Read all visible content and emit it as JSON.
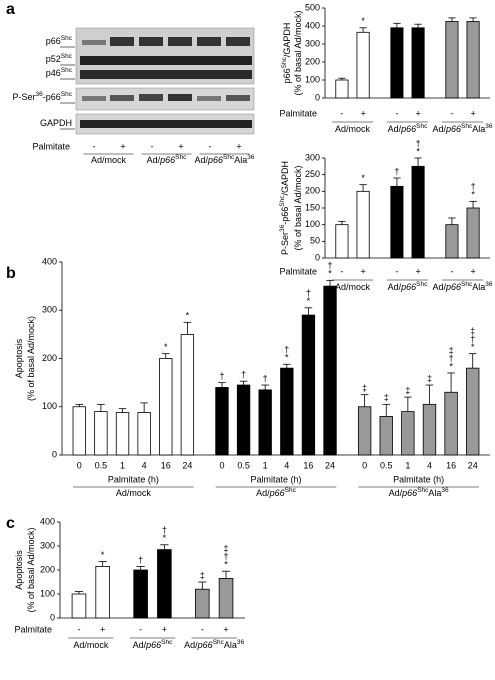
{
  "panel_labels": [
    "a",
    "b",
    "c"
  ],
  "blot": {
    "labels": [
      [
        {
          "text": "p66"
        },
        {
          "text": "Shc",
          "style": "sup"
        }
      ],
      [
        {
          "text": "p52"
        },
        {
          "text": "Shc",
          "style": "sup"
        }
      ],
      [
        {
          "text": "p46"
        },
        {
          "text": "Shc",
          "style": "sup"
        }
      ],
      [
        {
          "text": "P-Ser"
        },
        {
          "text": "36",
          "style": "sup"
        },
        {
          "text": "-p66"
        },
        {
          "text": "Shc",
          "style": "sup"
        }
      ],
      [
        {
          "text": "GAPDH"
        }
      ]
    ],
    "row_label": "Palmitate",
    "categories": [
      "-",
      "+",
      "-",
      "+",
      "-",
      "+"
    ],
    "groups": [
      [
        {
          "text": "Ad/mock"
        }
      ],
      [
        {
          "text": "Ad/"
        },
        {
          "text": "p66",
          "style": "it"
        },
        {
          "text": "Shc",
          "style": "sup"
        }
      ],
      [
        {
          "text": "Ad/"
        },
        {
          "text": "p66",
          "style": "it"
        },
        {
          "text": "Shc",
          "style": "sup"
        },
        {
          "text": "Ala"
        },
        {
          "text": "36",
          "style": "sup"
        }
      ]
    ]
  },
  "chart_data": [
    {
      "type": "bar",
      "ylabel": [
        [
          {
            "text": "p66"
          },
          {
            "text": "Shc",
            "style": "sup"
          },
          {
            "text": "/GAPDH"
          }
        ],
        [
          {
            "text": "(% of basal Ad/mock)"
          }
        ]
      ],
      "row_label": "Palmitate",
      "categories": [
        "-",
        "+",
        "-",
        "+",
        "-",
        "+"
      ],
      "values": [
        100,
        365,
        390,
        390,
        425,
        425
      ],
      "errors": [
        10,
        25,
        25,
        20,
        20,
        20
      ],
      "annotations": [
        [],
        [
          "*"
        ],
        [],
        [],
        [],
        []
      ],
      "groups": [
        {
          "name": [
            {
              "text": "Ad/mock"
            }
          ],
          "color": "#ffffff"
        },
        {
          "name": [
            {
              "text": "Ad/"
            },
            {
              "text": "p66",
              "style": "it"
            },
            {
              "text": "Shc",
              "style": "sup"
            }
          ],
          "color": "#000000"
        },
        {
          "name": [
            {
              "text": "Ad/"
            },
            {
              "text": "p66",
              "style": "it"
            },
            {
              "text": "Shc",
              "style": "sup"
            },
            {
              "text": "Ala"
            },
            {
              "text": "36",
              "style": "sup"
            }
          ],
          "color": "#999999"
        }
      ],
      "ylim": [
        0,
        500
      ],
      "yticks": [
        0,
        100,
        200,
        300,
        400,
        500
      ]
    },
    {
      "type": "bar",
      "ylabel": [
        [
          {
            "text": "P-Ser"
          },
          {
            "text": "36",
            "style": "sup"
          },
          {
            "text": "-p66"
          },
          {
            "text": "Shc",
            "style": "sup"
          },
          {
            "text": "/GAPDH"
          }
        ],
        [
          {
            "text": "(% of basal Ad/mock)"
          }
        ]
      ],
      "row_label": "Palmitate",
      "categories": [
        "-",
        "+",
        "-",
        "+",
        "-",
        "+"
      ],
      "values": [
        100,
        200,
        215,
        275,
        100,
        150
      ],
      "errors": [
        10,
        20,
        25,
        25,
        20,
        20
      ],
      "annotations": [
        [],
        [
          "*"
        ],
        [
          "†"
        ],
        [
          "†",
          "*"
        ],
        [],
        [
          "†",
          "*"
        ]
      ],
      "groups": [
        {
          "name": [
            {
              "text": "Ad/mock"
            }
          ],
          "color": "#ffffff"
        },
        {
          "name": [
            {
              "text": "Ad/"
            },
            {
              "text": "p66",
              "style": "it"
            },
            {
              "text": "Shc",
              "style": "sup"
            }
          ],
          "color": "#000000"
        },
        {
          "name": [
            {
              "text": "Ad/"
            },
            {
              "text": "p66",
              "style": "it"
            },
            {
              "text": "Shc",
              "style": "sup"
            },
            {
              "text": "Ala"
            },
            {
              "text": "36",
              "style": "sup"
            }
          ],
          "color": "#999999"
        }
      ],
      "ylim": [
        0,
        300
      ],
      "yticks": [
        0,
        50,
        100,
        150,
        200,
        250,
        300
      ]
    },
    {
      "type": "bar",
      "ylabel": [
        [
          {
            "text": "Apoptosis"
          }
        ],
        [
          {
            "text": "(% of basal Ad/mock)"
          }
        ]
      ],
      "group_axis_label": "Palmitate (h)",
      "categories": [
        "0",
        "0.5",
        "1",
        "4",
        "16",
        "24",
        "0",
        "0.5",
        "1",
        "4",
        "16",
        "24",
        "0",
        "0.5",
        "1",
        "4",
        "16",
        "24"
      ],
      "values": [
        100,
        90,
        88,
        88,
        200,
        250,
        140,
        145,
        135,
        180,
        290,
        350,
        100,
        80,
        90,
        105,
        130,
        180
      ],
      "errors": [
        5,
        15,
        8,
        20,
        10,
        25,
        10,
        8,
        10,
        8,
        15,
        12,
        25,
        25,
        30,
        40,
        40,
        30
      ],
      "annotations": [
        [],
        [],
        [],
        [],
        [
          "*"
        ],
        [
          "*"
        ],
        [
          "†"
        ],
        [
          "†"
        ],
        [
          "†"
        ],
        [
          "†",
          "*"
        ],
        [
          "†",
          "*"
        ],
        [
          "†",
          "*"
        ],
        [
          "‡"
        ],
        [
          "‡"
        ],
        [
          "‡"
        ],
        [
          "‡"
        ],
        [
          "‡",
          "†",
          "*"
        ],
        [
          "‡",
          "†",
          "*"
        ]
      ],
      "groups": [
        {
          "name": [
            {
              "text": "Ad/mock"
            }
          ],
          "color": "#ffffff"
        },
        {
          "name": [
            {
              "text": "Ad/"
            },
            {
              "text": "p66",
              "style": "it"
            },
            {
              "text": "Shc",
              "style": "sup"
            }
          ],
          "color": "#000000"
        },
        {
          "name": [
            {
              "text": "Ad/"
            },
            {
              "text": "p66",
              "style": "it"
            },
            {
              "text": "Shc",
              "style": "sup"
            },
            {
              "text": "Ala"
            },
            {
              "text": "36",
              "style": "sup"
            }
          ],
          "color": "#999999"
        }
      ],
      "ylim": [
        0,
        400
      ],
      "yticks": [
        0,
        100,
        200,
        300,
        400
      ]
    },
    {
      "type": "bar",
      "ylabel": [
        [
          {
            "text": "Apoptosis"
          }
        ],
        [
          {
            "text": "(% of basal Ad/mock)"
          }
        ]
      ],
      "row_label": "Palmitate",
      "categories": [
        "-",
        "+",
        "-",
        "+",
        "-",
        "+"
      ],
      "values": [
        100,
        215,
        200,
        285,
        120,
        165
      ],
      "errors": [
        10,
        20,
        15,
        20,
        30,
        30
      ],
      "annotations": [
        [],
        [
          "*"
        ],
        [
          "†"
        ],
        [
          "†",
          "*"
        ],
        [
          "‡"
        ],
        [
          "‡",
          "†",
          "*"
        ]
      ],
      "groups": [
        {
          "name": [
            {
              "text": "Ad/mock"
            }
          ],
          "color": "#ffffff"
        },
        {
          "name": [
            {
              "text": "Ad/"
            },
            {
              "text": "p66",
              "style": "it"
            },
            {
              "text": "Shc",
              "style": "sup"
            }
          ],
          "color": "#000000"
        },
        {
          "name": [
            {
              "text": "Ad/"
            },
            {
              "text": "p66",
              "style": "it"
            },
            {
              "text": "Shc",
              "style": "sup"
            },
            {
              "text": "Ala"
            },
            {
              "text": "36",
              "style": "sup"
            }
          ],
          "color": "#999999"
        }
      ],
      "ylim": [
        0,
        400
      ],
      "yticks": [
        0,
        100,
        200,
        300,
        400
      ]
    }
  ]
}
